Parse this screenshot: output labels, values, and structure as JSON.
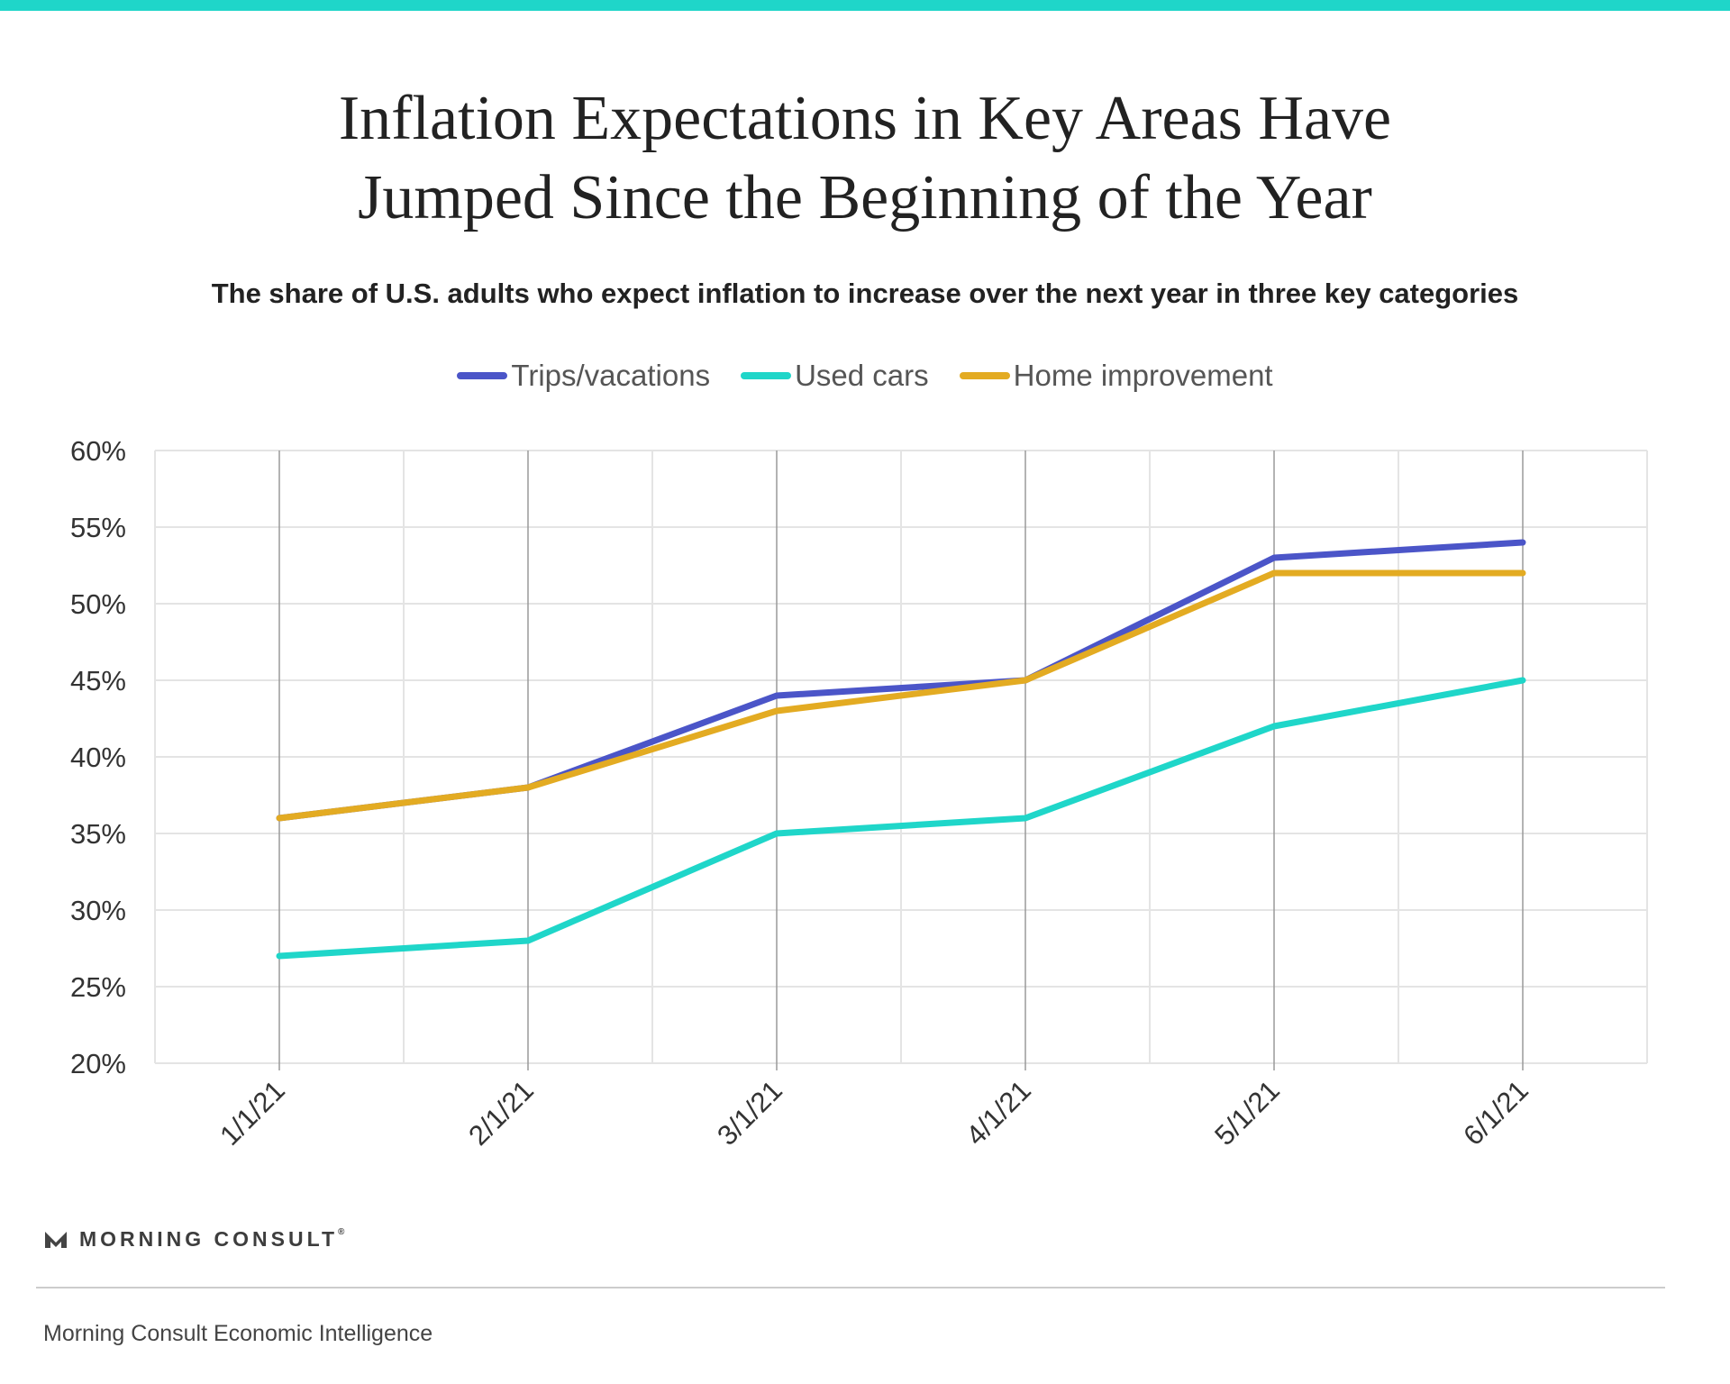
{
  "colors": {
    "accent": "#1fd6c9",
    "trips": "#4b55c8",
    "used_cars": "#1fd6c9",
    "home": "#e3ab22"
  },
  "chart_data": {
    "type": "line",
    "title_lines": [
      "Inflation Expectations in Key Areas Have",
      "Jumped Since the Beginning of the Year"
    ],
    "subtitle": "The share of U.S. adults who expect inflation to increase over the next year in three key categories",
    "x": [
      "1/1/21",
      "2/1/21",
      "3/1/21",
      "4/1/21",
      "5/1/21",
      "6/1/21"
    ],
    "series": [
      {
        "name": "Trips/vacations",
        "color": "#4b55c8",
        "values": [
          36,
          38,
          44,
          45,
          53,
          54
        ]
      },
      {
        "name": "Used cars",
        "color": "#1fd6c9",
        "values": [
          27,
          28,
          35,
          36,
          42,
          45
        ]
      },
      {
        "name": "Home improvement",
        "color": "#e3ab22",
        "values": [
          36,
          38,
          43,
          45,
          52,
          52
        ]
      }
    ],
    "ylim": [
      20,
      60
    ],
    "yticks": [
      "20%",
      "25%",
      "30%",
      "35%",
      "40%",
      "45%",
      "50%",
      "55%",
      "60%"
    ],
    "grid": true,
    "legend_position": "top-center"
  },
  "footer": {
    "logo_text": "MORNING CONSULT",
    "logo_mark": "®",
    "source": "Morning Consult Economic Intelligence"
  }
}
